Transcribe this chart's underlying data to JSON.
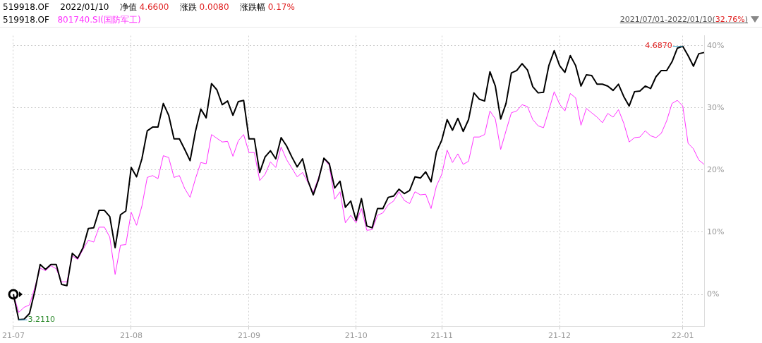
{
  "chart_data": {
    "type": "line",
    "title": "519918.OF    2022/01/10    净值 4.6600    涨跌 0.0080    涨跌幅 0.17%",
    "subtitle": "2021/07/01-2022/01/10(32.76%)",
    "legend": "top left",
    "grid": true,
    "categories": [
      "21-07",
      null,
      null,
      null,
      null,
      null,
      null,
      null,
      null,
      null,
      null,
      null,
      null,
      null,
      null,
      null,
      null,
      null,
      null,
      null,
      null,
      null,
      "21-08",
      null,
      null,
      null,
      null,
      null,
      null,
      null,
      null,
      null,
      null,
      null,
      null,
      null,
      null,
      null,
      null,
      null,
      null,
      null,
      null,
      null,
      "21-09",
      null,
      null,
      null,
      null,
      null,
      null,
      null,
      null,
      null,
      null,
      null,
      null,
      null,
      null,
      null,
      null,
      null,
      null,
      null,
      "21-10",
      null,
      null,
      null,
      null,
      null,
      null,
      null,
      null,
      null,
      null,
      null,
      null,
      null,
      null,
      null,
      "21-11",
      null,
      null,
      null,
      null,
      null,
      null,
      null,
      null,
      null,
      null,
      null,
      null,
      null,
      null,
      null,
      null,
      null,
      null,
      null,
      null,
      null,
      "21-12",
      null,
      null,
      null,
      null,
      null,
      null,
      null,
      null,
      null,
      null,
      null,
      null,
      null,
      null,
      null,
      null,
      null,
      null,
      null,
      null,
      null,
      null,
      "22-01",
      null,
      null,
      null,
      null
    ],
    "series": [
      {
        "name": "519918.OF",
        "color": "#000000",
        "values": [
          0,
          -4.1,
          -4.0,
          -3.1,
          0.5,
          4.8,
          4.0,
          4.8,
          4.8,
          1.6,
          1.4,
          6.6,
          5.8,
          7.5,
          10.6,
          10.7,
          13.5,
          13.5,
          12.5,
          7.5,
          12.8,
          13.4,
          20.4,
          18.9,
          21.8,
          26.3,
          26.9,
          26.9,
          30.7,
          28.8,
          25.0,
          25.0,
          23.3,
          21.5,
          26.2,
          29.8,
          28.4,
          33.9,
          32.9,
          30.5,
          31.1,
          28.8,
          31.0,
          31.2,
          25.0,
          25.0,
          19.6,
          22.1,
          23.1,
          21.8,
          25.2,
          23.9,
          22.1,
          20.5,
          21.8,
          18.3,
          16.0,
          18.5,
          21.9,
          21.0,
          17.1,
          18.2,
          14.0,
          15.0,
          11.9,
          15.4,
          11.0,
          10.7,
          13.8,
          13.8,
          15.6,
          15.8,
          16.9,
          16.2,
          16.7,
          18.9,
          18.7,
          19.7,
          18.1,
          22.9,
          24.8,
          28.1,
          26.4,
          28.3,
          26.2,
          28.1,
          32.4,
          31.4,
          31.1,
          35.8,
          33.5,
          28.2,
          30.7,
          35.6,
          36.0,
          37.1,
          36.1,
          33.4,
          32.4,
          32.5,
          36.8,
          39.2,
          36.8,
          35.7,
          38.4,
          36.8,
          33.5,
          35.3,
          35.2,
          33.8,
          33.8,
          33.5,
          32.8,
          33.8,
          31.8,
          30.3,
          32.6,
          32.7,
          33.5,
          33.1,
          35.0,
          36.0,
          36.0,
          37.4,
          39.6,
          39.9,
          38.4,
          36.7,
          38.7,
          38.9
        ]
      },
      {
        "name": "801740.SI(国防军工)",
        "color": "#ff33ff",
        "values": [
          0,
          -2.9,
          -2.1,
          -1.7,
          1.1,
          4.2,
          3.8,
          4.6,
          4.1,
          2.0,
          2.0,
          6.2,
          5.6,
          7.2,
          8.7,
          8.4,
          10.8,
          10.8,
          9.2,
          3.2,
          7.9,
          8.0,
          13.2,
          11.1,
          14.2,
          18.8,
          19.1,
          18.6,
          22.3,
          22.0,
          18.8,
          19.1,
          17.0,
          15.6,
          18.6,
          21.2,
          21.0,
          25.7,
          25.1,
          24.5,
          24.6,
          22.2,
          24.7,
          25.7,
          22.8,
          22.8,
          18.3,
          19.3,
          21.3,
          20.4,
          23.7,
          21.7,
          20.3,
          18.9,
          19.6,
          18.0,
          16.4,
          18.8,
          21.8,
          20.7,
          15.3,
          16.5,
          11.5,
          12.7,
          11.5,
          13.8,
          10.3,
          10.4,
          12.7,
          13.1,
          14.4,
          15.0,
          16.5,
          15.1,
          14.6,
          16.5,
          16.0,
          16.1,
          13.8,
          17.4,
          19.3,
          23.2,
          21.2,
          22.6,
          20.9,
          21.4,
          25.3,
          25.3,
          25.7,
          29.5,
          28.2,
          23.3,
          26.3,
          29.2,
          29.5,
          30.5,
          30.2,
          28.1,
          27.1,
          26.8,
          29.6,
          32.6,
          30.6,
          29.5,
          32.3,
          31.6,
          27.2,
          29.9,
          29.2,
          28.5,
          27.6,
          29.1,
          28.5,
          29.7,
          27.5,
          24.5,
          25.2,
          25.3,
          26.3,
          25.5,
          25.2,
          25.9,
          27.9,
          30.7,
          31.2,
          30.3,
          24.3,
          23.4,
          21.6,
          20.9
        ]
      }
    ],
    "ylim": [
      -5.2,
      41.6
    ],
    "yticks": [
      {
        "value": 0,
        "label": "0%"
      },
      {
        "value": 10,
        "label": "10%"
      },
      {
        "value": 20,
        "label": "20%"
      },
      {
        "value": 30,
        "label": "30%"
      },
      {
        "value": 40,
        "label": "40%"
      }
    ],
    "annotations": [
      "4.6870",
      "3.2110"
    ]
  }
}
